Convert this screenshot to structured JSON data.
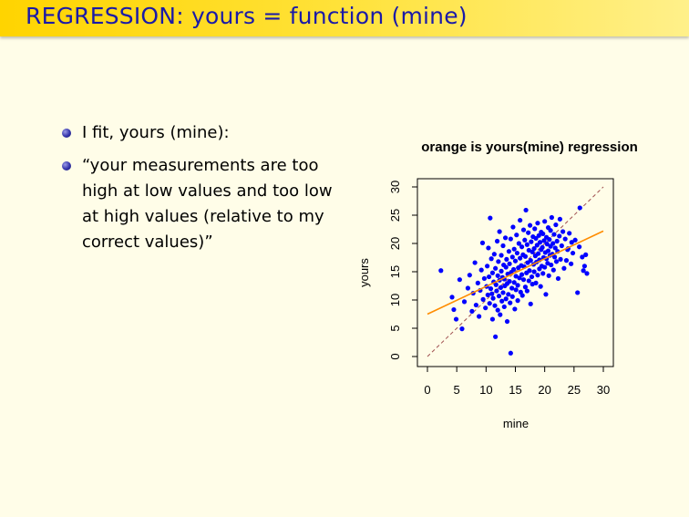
{
  "slide": {
    "title": "REGRESSION: yours = function (mine)",
    "bullets": [
      "I fit, yours (mine):",
      "“your measurements are too high at low values and too low at high values (relative to my correct values)”"
    ]
  },
  "colors": {
    "title_text": "#1a1aa8",
    "points": "#0000ff",
    "regression_line": "#ff8c00",
    "identity_line": "#a05050"
  },
  "chart_data": {
    "type": "scatter",
    "title": "orange is yours(mine) regression",
    "xlabel": "mine",
    "ylabel": "yours",
    "xlim": [
      0,
      30
    ],
    "ylim": [
      0,
      30
    ],
    "xticks": [
      0,
      5,
      10,
      15,
      20,
      25,
      30
    ],
    "yticks": [
      0,
      5,
      10,
      15,
      20,
      25,
      30
    ],
    "regression_line": {
      "intercept": 7.5,
      "slope": 0.49,
      "x_range": [
        0,
        30
      ]
    },
    "identity_line": {
      "slope": 1,
      "intercept": 0,
      "style": "dashed"
    },
    "points": [
      [
        2.3,
        15.2
      ],
      [
        4.2,
        10.5
      ],
      [
        4.5,
        8.3
      ],
      [
        4.9,
        6.6
      ],
      [
        5.5,
        13.6
      ],
      [
        5.9,
        4.9
      ],
      [
        6.3,
        9.7
      ],
      [
        6.9,
        12.1
      ],
      [
        7.2,
        14.4
      ],
      [
        7.6,
        8.0
      ],
      [
        7.8,
        11.2
      ],
      [
        8.1,
        16.6
      ],
      [
        8.3,
        9.1
      ],
      [
        8.6,
        13.0
      ],
      [
        8.8,
        7.1
      ],
      [
        9.0,
        11.7
      ],
      [
        9.2,
        15.3
      ],
      [
        9.4,
        20.1
      ],
      [
        9.5,
        10.1
      ],
      [
        9.7,
        13.8
      ],
      [
        9.9,
        8.6
      ],
      [
        10.1,
        12.4
      ],
      [
        10.2,
        16.0
      ],
      [
        10.3,
        10.9
      ],
      [
        10.4,
        19.2
      ],
      [
        10.5,
        14.1
      ],
      [
        10.6,
        9.4
      ],
      [
        10.7,
        24.5
      ],
      [
        10.8,
        12.0
      ],
      [
        10.9,
        17.3
      ],
      [
        11.0,
        11.1
      ],
      [
        11.1,
        6.6
      ],
      [
        11.1,
        14.8
      ],
      [
        11.2,
        10.3
      ],
      [
        11.3,
        13.2
      ],
      [
        11.4,
        18.1
      ],
      [
        11.5,
        9.0
      ],
      [
        11.6,
        15.6
      ],
      [
        11.6,
        3.5
      ],
      [
        11.7,
        12.7
      ],
      [
        11.8,
        11.6
      ],
      [
        11.9,
        20.4
      ],
      [
        12.0,
        8.2
      ],
      [
        12.0,
        14.3
      ],
      [
        12.1,
        16.8
      ],
      [
        12.2,
        10.7
      ],
      [
        12.3,
        13.5
      ],
      [
        12.3,
        22.1
      ],
      [
        12.4,
        7.4
      ],
      [
        12.5,
        12.2
      ],
      [
        12.6,
        15.1
      ],
      [
        12.6,
        17.9
      ],
      [
        12.7,
        9.8
      ],
      [
        12.8,
        14.0
      ],
      [
        12.9,
        11.3
      ],
      [
        12.9,
        19.6
      ],
      [
        13.0,
        16.2
      ],
      [
        13.1,
        8.8
      ],
      [
        13.1,
        13.7
      ],
      [
        13.2,
        12.5
      ],
      [
        13.3,
        21.0
      ],
      [
        13.4,
        10.2
      ],
      [
        13.4,
        15.8
      ],
      [
        13.5,
        17.2
      ],
      [
        13.6,
        12.9
      ],
      [
        13.6,
        6.2
      ],
      [
        13.7,
        14.6
      ],
      [
        13.8,
        11.0
      ],
      [
        13.9,
        18.6
      ],
      [
        14.0,
        13.3
      ],
      [
        14.0,
        16.4
      ],
      [
        14.1,
        9.5
      ],
      [
        14.2,
        20.8
      ],
      [
        14.2,
        0.6
      ],
      [
        14.3,
        14.9
      ],
      [
        14.4,
        12.1
      ],
      [
        14.5,
        17.6
      ],
      [
        14.5,
        10.6
      ],
      [
        14.6,
        22.9
      ],
      [
        14.7,
        15.4
      ],
      [
        14.8,
        13.1
      ],
      [
        14.8,
        19.0
      ],
      [
        14.9,
        8.4
      ],
      [
        15.0,
        16.9
      ],
      [
        15.1,
        11.8
      ],
      [
        15.1,
        14.2
      ],
      [
        15.2,
        21.5
      ],
      [
        15.3,
        18.3
      ],
      [
        15.4,
        12.6
      ],
      [
        15.4,
        9.9
      ],
      [
        15.5,
        15.7
      ],
      [
        15.6,
        20.0
      ],
      [
        15.7,
        13.9
      ],
      [
        15.8,
        17.4
      ],
      [
        15.8,
        24.1
      ],
      [
        15.9,
        11.4
      ],
      [
        16.0,
        16.1
      ],
      [
        16.1,
        19.4
      ],
      [
        16.1,
        14.5
      ],
      [
        16.2,
        10.8
      ],
      [
        16.3,
        18.0
      ],
      [
        16.4,
        22.4
      ],
      [
        16.4,
        13.6
      ],
      [
        16.5,
        15.9
      ],
      [
        16.6,
        20.6
      ],
      [
        16.7,
        12.3
      ],
      [
        16.7,
        17.7
      ],
      [
        16.8,
        25.9
      ],
      [
        16.9,
        14.8
      ],
      [
        17.0,
        19.8
      ],
      [
        17.0,
        11.6
      ],
      [
        17.1,
        16.6
      ],
      [
        17.2,
        21.9
      ],
      [
        17.3,
        13.4
      ],
      [
        17.3,
        18.8
      ],
      [
        17.4,
        15.2
      ],
      [
        17.5,
        23.2
      ],
      [
        17.6,
        9.3
      ],
      [
        17.6,
        17.0
      ],
      [
        17.7,
        20.3
      ],
      [
        17.8,
        14.1
      ],
      [
        17.9,
        18.5
      ],
      [
        17.9,
        12.8
      ],
      [
        18.0,
        21.2
      ],
      [
        18.1,
        16.3
      ],
      [
        18.2,
        19.1
      ],
      [
        18.2,
        15.0
      ],
      [
        18.3,
        22.6
      ],
      [
        18.4,
        17.8
      ],
      [
        18.5,
        13.0
      ],
      [
        18.5,
        20.9
      ],
      [
        18.6,
        16.7
      ],
      [
        18.7,
        19.7
      ],
      [
        18.8,
        14.4
      ],
      [
        18.8,
        23.6
      ],
      [
        18.9,
        18.2
      ],
      [
        19.0,
        21.4
      ],
      [
        19.1,
        15.5
      ],
      [
        19.1,
        17.1
      ],
      [
        19.2,
        20.2
      ],
      [
        19.3,
        12.4
      ],
      [
        19.4,
        18.9
      ],
      [
        19.4,
        22.0
      ],
      [
        19.5,
        16.0
      ],
      [
        19.6,
        19.3
      ],
      [
        19.7,
        14.7
      ],
      [
        19.7,
        21.7
      ],
      [
        19.8,
        17.5
      ],
      [
        19.9,
        20.5
      ],
      [
        20.0,
        23.9
      ],
      [
        20.0,
        15.8
      ],
      [
        20.1,
        18.4
      ],
      [
        20.2,
        11.0
      ],
      [
        20.3,
        21.1
      ],
      [
        20.3,
        17.3
      ],
      [
        20.4,
        19.9
      ],
      [
        20.5,
        16.5
      ],
      [
        20.6,
        22.8
      ],
      [
        20.6,
        18.7
      ],
      [
        20.7,
        14.3
      ],
      [
        20.8,
        20.7
      ],
      [
        20.9,
        17.9
      ],
      [
        21.0,
        19.5
      ],
      [
        21.0,
        22.3
      ],
      [
        21.1,
        16.2
      ],
      [
        21.2,
        24.6
      ],
      [
        21.3,
        18.1
      ],
      [
        21.4,
        20.0
      ],
      [
        21.5,
        15.3
      ],
      [
        21.6,
        21.6
      ],
      [
        21.7,
        17.6
      ],
      [
        21.8,
        19.2
      ],
      [
        21.9,
        23.3
      ],
      [
        22.0,
        16.8
      ],
      [
        22.1,
        20.4
      ],
      [
        22.2,
        18.6
      ],
      [
        22.3,
        13.8
      ],
      [
        22.5,
        21.3
      ],
      [
        22.7,
        17.2
      ],
      [
        22.9,
        19.6
      ],
      [
        23.1,
        22.1
      ],
      [
        23.3,
        15.6
      ],
      [
        23.5,
        20.8
      ],
      [
        23.7,
        17.0
      ],
      [
        24.0,
        19.1
      ],
      [
        24.2,
        21.8
      ],
      [
        24.5,
        16.4
      ],
      [
        24.8,
        18.3
      ],
      [
        25.2,
        20.6
      ],
      [
        25.6,
        11.3
      ],
      [
        26.0,
        26.3
      ],
      [
        26.4,
        17.6
      ],
      [
        26.8,
        16.0
      ],
      [
        27.2,
        14.7
      ],
      [
        22.6,
        24.3
      ],
      [
        23.9,
        18.9
      ],
      [
        24.6,
        20.2
      ],
      [
        25.9,
        19.4
      ],
      [
        26.6,
        15.2
      ],
      [
        27.0,
        18.0
      ]
    ]
  }
}
